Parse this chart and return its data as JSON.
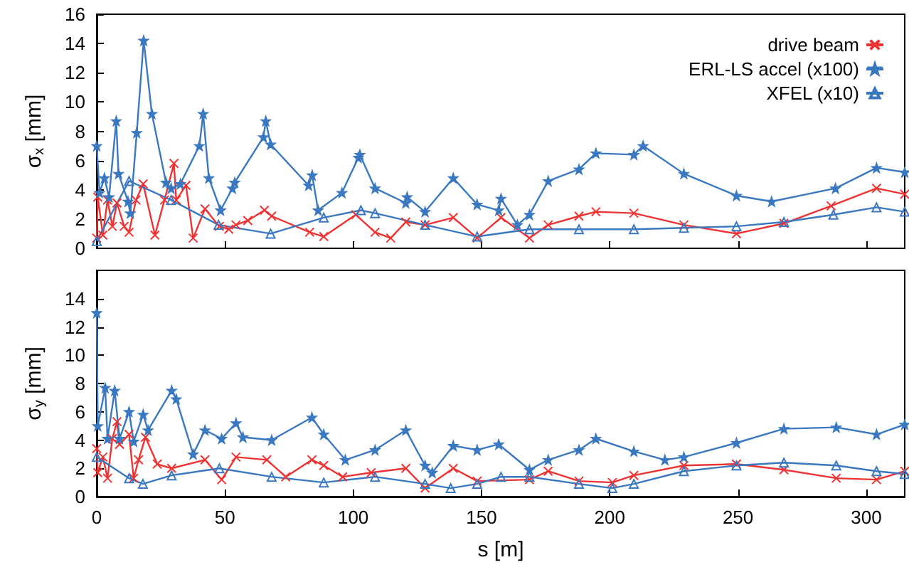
{
  "chart_data": [
    {
      "type": "line",
      "ylabel": "σ$_{x}$ [mm]",
      "xlim": [
        0,
        315
      ],
      "xticks": [
        0,
        50,
        100,
        150,
        200,
        250,
        300
      ],
      "ylim": [
        0,
        16
      ],
      "yticks": [
        0,
        2,
        4,
        6,
        8,
        10,
        12,
        14,
        16
      ],
      "tick_labels": "y",
      "legend": "top right",
      "grid": false,
      "series": [
        {
          "name": "drive beam",
          "color": "#ee3333",
          "marker": "cross",
          "x": [
            0,
            0.4,
            2.4,
            4.2,
            6.1,
            7.9,
            10.7,
            12.6,
            15.3,
            18.1,
            22.7,
            26.4,
            30.1,
            31,
            34.8,
            37.6,
            42.2,
            47.8,
            51.5,
            54.3,
            58.9,
            65.4,
            68.2,
            83,
            88.5,
            101,
            108.5,
            114.6,
            120.5,
            128,
            139,
            148.3,
            157.6,
            168.7,
            176,
            188,
            194.6,
            209.4,
            228.9,
            249.4,
            267.9,
            286.3,
            304,
            315
          ],
          "values": [
            0.7,
            3.5,
            0.9,
            3.3,
            1.5,
            3.1,
            1.5,
            1.1,
            3.3,
            4.4,
            0.9,
            3.3,
            5.8,
            3.3,
            4.3,
            0.7,
            2.7,
            1.5,
            1.3,
            1.6,
            1.9,
            2.6,
            2.2,
            1.1,
            0.8,
            2.3,
            1.1,
            0.7,
            1.8,
            1.6,
            2.1,
            0.7,
            2.1,
            0.7,
            1.6,
            2.2,
            2.5,
            2.4,
            1.6,
            1.0,
            1.7,
            2.9,
            4.1,
            3.7
          ]
        },
        {
          "name": "ERL-LS accel (x100)",
          "color": "#3a78c0",
          "marker": "star",
          "x": [
            0,
            1.1,
            3,
            4.8,
            7.6,
            8.5,
            12.2,
            13.1,
            15.6,
            18.3,
            21.5,
            27,
            29,
            32.6,
            40,
            41.5,
            43.7,
            48.3,
            52.9,
            53.8,
            65,
            65.9,
            67.8,
            82.6,
            84,
            86.3,
            95.6,
            102,
            102.6,
            108.5,
            120.5,
            121,
            128,
            139,
            148.3,
            156.7,
            157.6,
            164,
            168.7,
            176,
            188,
            194.6,
            209.4,
            213,
            228.9,
            249.4,
            263.1,
            288,
            304,
            315
          ],
          "values": [
            7.0,
            3.8,
            4.8,
            3.5,
            8.7,
            5.1,
            3.2,
            2.4,
            7.9,
            14.2,
            9.2,
            4.5,
            4.1,
            4.4,
            7.0,
            9.2,
            4.8,
            2.6,
            4.1,
            4.5,
            7.6,
            8.7,
            7.1,
            4.3,
            5.0,
            2.6,
            3.8,
            6.2,
            6.4,
            4.1,
            3.1,
            3.5,
            2.5,
            4.8,
            3.0,
            2.6,
            3.4,
            1.6,
            2.3,
            4.6,
            5.4,
            6.5,
            6.4,
            7.0,
            5.1,
            3.6,
            3.2,
            4.1,
            5.5,
            5.2
          ]
        },
        {
          "name": "XFEL (x10)",
          "color": "#3a78c0",
          "marker": "triangle",
          "x": [
            0,
            12.6,
            29,
            47.5,
            67.8,
            88.5,
            103,
            108.5,
            128,
            148.3,
            168.7,
            188,
            209.4,
            228.9,
            249.4,
            267.9,
            287.2,
            304,
            315
          ],
          "values": [
            0.5,
            4.6,
            3.3,
            1.6,
            1.0,
            2.1,
            2.6,
            2.4,
            1.6,
            0.8,
            1.3,
            1.3,
            1.3,
            1.4,
            1.5,
            1.8,
            2.3,
            2.8,
            2.5
          ]
        }
      ]
    },
    {
      "type": "line",
      "xlabel": "s [m]",
      "ylabel": "σ$_{y}$ [mm]",
      "xlim": [
        0,
        315
      ],
      "xticks": [
        0,
        50,
        100,
        150,
        200,
        250,
        300
      ],
      "ylim": [
        0,
        16
      ],
      "yticks": [
        0,
        2,
        4,
        6,
        8,
        10,
        12,
        14
      ],
      "grid": false,
      "series": [
        {
          "color": "#ee3333",
          "marker": "cross",
          "x": [
            0,
            0.4,
            2.4,
            4.2,
            6.1,
            7.9,
            8.9,
            12.6,
            14.4,
            16.3,
            19,
            23.6,
            29.2,
            42.2,
            48.7,
            54.3,
            66.3,
            73.7,
            83.9,
            88.5,
            95.9,
            107,
            120.5,
            128,
            139,
            148.3,
            168.7,
            176,
            188,
            201,
            209.4,
            228.9,
            249.4,
            267.9,
            288.3,
            304,
            315
          ],
          "values": [
            3.4,
            1.7,
            2.8,
            1.3,
            4.1,
            5.3,
            3.7,
            4.4,
            1.3,
            2.6,
            4.2,
            2.3,
            2.0,
            2.6,
            1.2,
            2.8,
            2.6,
            1.4,
            2.6,
            2.2,
            1.4,
            1.7,
            2.0,
            0.6,
            2.0,
            1.1,
            1.2,
            1.8,
            1.1,
            1.0,
            1.5,
            2.2,
            2.3,
            1.9,
            1.3,
            1.2,
            1.8
          ]
        },
        {
          "color": "#3a78c0",
          "marker": "star",
          "x": [
            0,
            0.4,
            3.3,
            4.2,
            7,
            8.9,
            12.6,
            14.4,
            18.1,
            20,
            29.2,
            31,
            37.6,
            42.2,
            48.7,
            54.3,
            57,
            68.2,
            83.9,
            88.5,
            96.9,
            108.5,
            120.5,
            128,
            130.8,
            139,
            148.3,
            156.7,
            168.7,
            176,
            188,
            194.6,
            209.4,
            221.5,
            228.9,
            249.4,
            267.9,
            288.3,
            304,
            315
          ],
          "values": [
            13.0,
            5.0,
            7.7,
            4.1,
            7.5,
            4.1,
            6.0,
            3.9,
            5.8,
            4.7,
            7.5,
            6.9,
            3.0,
            4.7,
            4.1,
            5.2,
            4.2,
            4.0,
            5.6,
            4.4,
            2.6,
            3.3,
            4.7,
            2.2,
            1.7,
            3.6,
            3.3,
            3.7,
            1.9,
            2.6,
            3.3,
            4.1,
            3.2,
            2.6,
            2.8,
            3.8,
            4.8,
            4.9,
            4.4,
            5.1
          ]
        },
        {
          "color": "#3a78c0",
          "marker": "triangle",
          "x": [
            0,
            12.6,
            18,
            29.2,
            47.8,
            68.2,
            88.5,
            108.5,
            128,
            138,
            148.3,
            157.6,
            168.7,
            188,
            201,
            209.4,
            228.9,
            249.4,
            267.9,
            288.3,
            304,
            315
          ],
          "values": [
            2.8,
            1.3,
            0.9,
            1.5,
            2.0,
            1.4,
            1.0,
            1.4,
            0.9,
            0.6,
            0.9,
            1.4,
            1.4,
            0.9,
            0.6,
            0.9,
            1.8,
            2.2,
            2.4,
            2.2,
            1.8,
            1.6
          ]
        }
      ]
    }
  ]
}
